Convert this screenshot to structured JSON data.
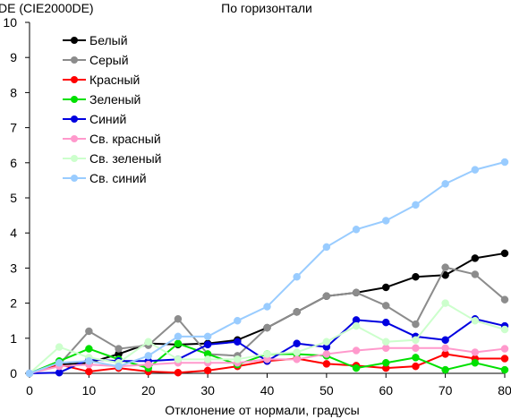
{
  "chart_data": {
    "type": "line",
    "title": "По горизонтали",
    "ylabel": "DE (CIE2000DE)",
    "xlabel": "Отклонение от нормали, градусы",
    "x": [
      0,
      5,
      10,
      15,
      20,
      25,
      30,
      35,
      40,
      45,
      50,
      55,
      60,
      65,
      70,
      75,
      80
    ],
    "xlim": [
      0,
      80
    ],
    "ylim": [
      0,
      10
    ],
    "xticks": [
      0,
      10,
      20,
      30,
      40,
      50,
      60,
      70,
      80
    ],
    "yticks": [
      0,
      1,
      2,
      3,
      4,
      5,
      6,
      7,
      8,
      9,
      10
    ],
    "grid": false,
    "legend_position": "top-left",
    "series": [
      {
        "name": "Белый",
        "color": "#000000",
        "values": [
          0,
          0.25,
          0.3,
          0.55,
          0.85,
          0.82,
          0.85,
          0.95,
          1.3,
          1.75,
          2.2,
          2.3,
          2.45,
          2.75,
          2.8,
          3.28,
          3.42
        ]
      },
      {
        "name": "Серый",
        "color": "#8c8c8c",
        "values": [
          0,
          0.25,
          1.2,
          0.7,
          0.8,
          1.55,
          0.55,
          0.5,
          1.3,
          1.75,
          2.2,
          2.3,
          1.93,
          1.4,
          3.02,
          2.82,
          2.1
        ]
      },
      {
        "name": "Красный",
        "color": "#ff0000",
        "values": [
          0,
          0.25,
          0.05,
          0.15,
          0.05,
          0.02,
          0.08,
          0.2,
          0.35,
          0.42,
          0.27,
          0.22,
          0.15,
          0.2,
          0.55,
          0.42,
          0.42
        ]
      },
      {
        "name": "Зеленый",
        "color": "#00e000",
        "values": [
          0,
          0.35,
          0.7,
          0.4,
          0.15,
          0.85,
          0.55,
          0.25,
          0.55,
          0.55,
          0.5,
          0.15,
          0.3,
          0.45,
          0.1,
          0.3,
          0.1
        ]
      },
      {
        "name": "Синий",
        "color": "#0000e0",
        "values": [
          0,
          0.02,
          0.4,
          0.35,
          0.35,
          0.4,
          0.82,
          0.9,
          0.35,
          0.85,
          0.75,
          1.52,
          1.45,
          1.05,
          0.95,
          1.55,
          1.35
        ]
      },
      {
        "name": "Св. красный",
        "color": "#ff99cc",
        "values": [
          0,
          0.2,
          0.25,
          0.2,
          0.25,
          0.3,
          0.3,
          0.3,
          0.4,
          0.4,
          0.55,
          0.65,
          0.72,
          0.72,
          0.72,
          0.6,
          0.7
        ]
      },
      {
        "name": "Св. зеленый",
        "color": "#ccffcc",
        "values": [
          0,
          0.75,
          0.45,
          0.3,
          0.9,
          0.4,
          0.4,
          0.4,
          0.55,
          0.6,
          0.9,
          1.35,
          0.9,
          0.95,
          2.0,
          1.5,
          1.25
        ]
      },
      {
        "name": "Св. синий",
        "color": "#99ccff",
        "values": [
          0,
          0.3,
          0.35,
          0.2,
          0.5,
          1.05,
          1.05,
          1.5,
          1.9,
          2.75,
          3.6,
          4.1,
          4.35,
          4.8,
          5.4,
          5.8,
          6.02
        ]
      }
    ]
  }
}
